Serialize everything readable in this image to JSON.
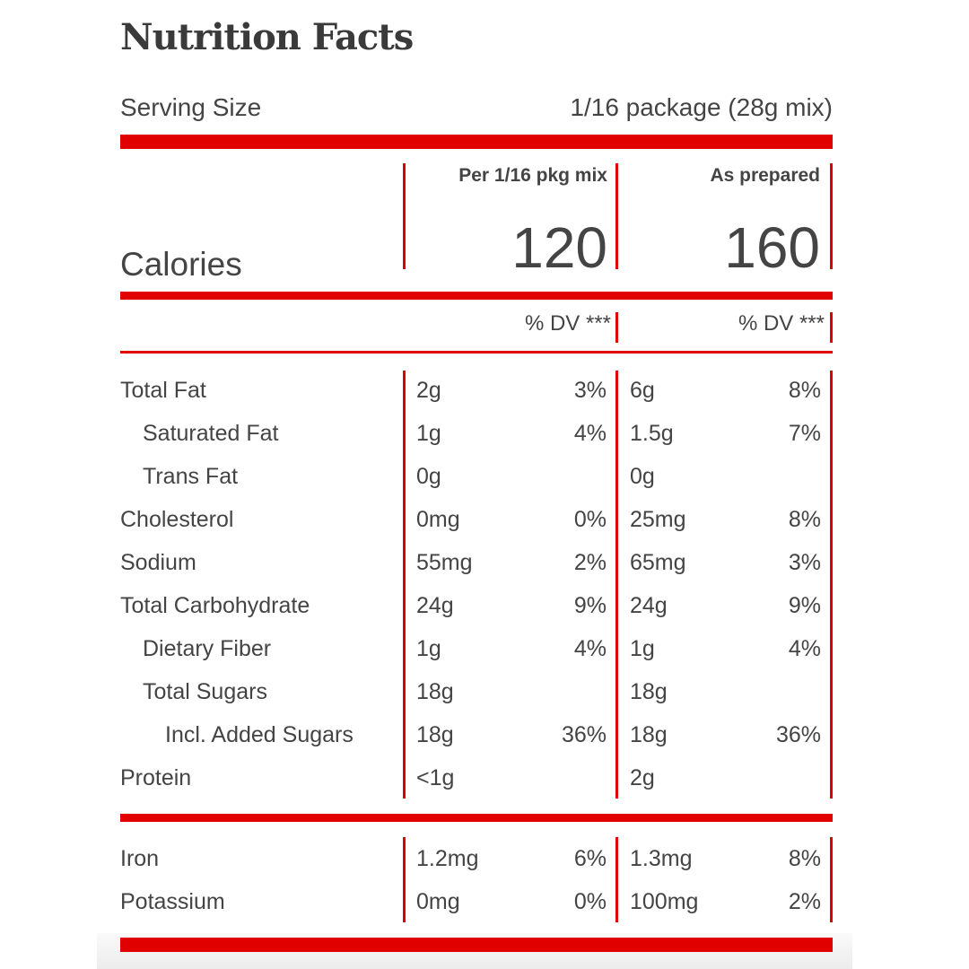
{
  "title": "Nutrition Facts",
  "serving": {
    "label": "Serving Size",
    "value": "1/16 package (28g mix)"
  },
  "columns": [
    {
      "header": "Per 1/16 pkg mix",
      "calories": "120",
      "dv_label": "% DV ***"
    },
    {
      "header": "As prepared",
      "calories": "160",
      "dv_label": "% DV ***"
    }
  ],
  "calories_label": "Calories",
  "nutrients": [
    {
      "name": "Total Fat",
      "indent": 0,
      "a_amt": "2g",
      "a_dv": "3%",
      "b_amt": "6g",
      "b_dv": "8%"
    },
    {
      "name": "Saturated Fat",
      "indent": 1,
      "a_amt": "1g",
      "a_dv": "4%",
      "b_amt": "1.5g",
      "b_dv": "7%"
    },
    {
      "name": "Trans Fat",
      "indent": 1,
      "a_amt": "0g",
      "a_dv": "",
      "b_amt": "0g",
      "b_dv": ""
    },
    {
      "name": "Cholesterol",
      "indent": 0,
      "a_amt": "0mg",
      "a_dv": "0%",
      "b_amt": "25mg",
      "b_dv": "8%"
    },
    {
      "name": "Sodium",
      "indent": 0,
      "a_amt": "55mg",
      "a_dv": "2%",
      "b_amt": "65mg",
      "b_dv": "3%"
    },
    {
      "name": "Total Carbohydrate",
      "indent": 0,
      "a_amt": "24g",
      "a_dv": "9%",
      "b_amt": "24g",
      "b_dv": "9%"
    },
    {
      "name": "Dietary Fiber",
      "indent": 1,
      "a_amt": "1g",
      "a_dv": "4%",
      "b_amt": "1g",
      "b_dv": "4%"
    },
    {
      "name": "Total Sugars",
      "indent": 1,
      "a_amt": "18g",
      "a_dv": "",
      "b_amt": "18g",
      "b_dv": ""
    },
    {
      "name": "Incl. Added Sugars",
      "indent": 2,
      "a_amt": "18g",
      "a_dv": "36%",
      "b_amt": "18g",
      "b_dv": "36%"
    },
    {
      "name": "Protein",
      "indent": 0,
      "a_amt": "<1g",
      "a_dv": "",
      "b_amt": "2g",
      "b_dv": ""
    }
  ],
  "minerals": [
    {
      "name": "Iron",
      "indent": 0,
      "a_amt": "1.2mg",
      "a_dv": "6%",
      "b_amt": "1.3mg",
      "b_dv": "8%"
    },
    {
      "name": "Potassium",
      "indent": 0,
      "a_amt": "0mg",
      "a_dv": "0%",
      "b_amt": "100mg",
      "b_dv": "2%"
    }
  ],
  "colors": {
    "accent": "#e00000",
    "text": "#444444"
  }
}
